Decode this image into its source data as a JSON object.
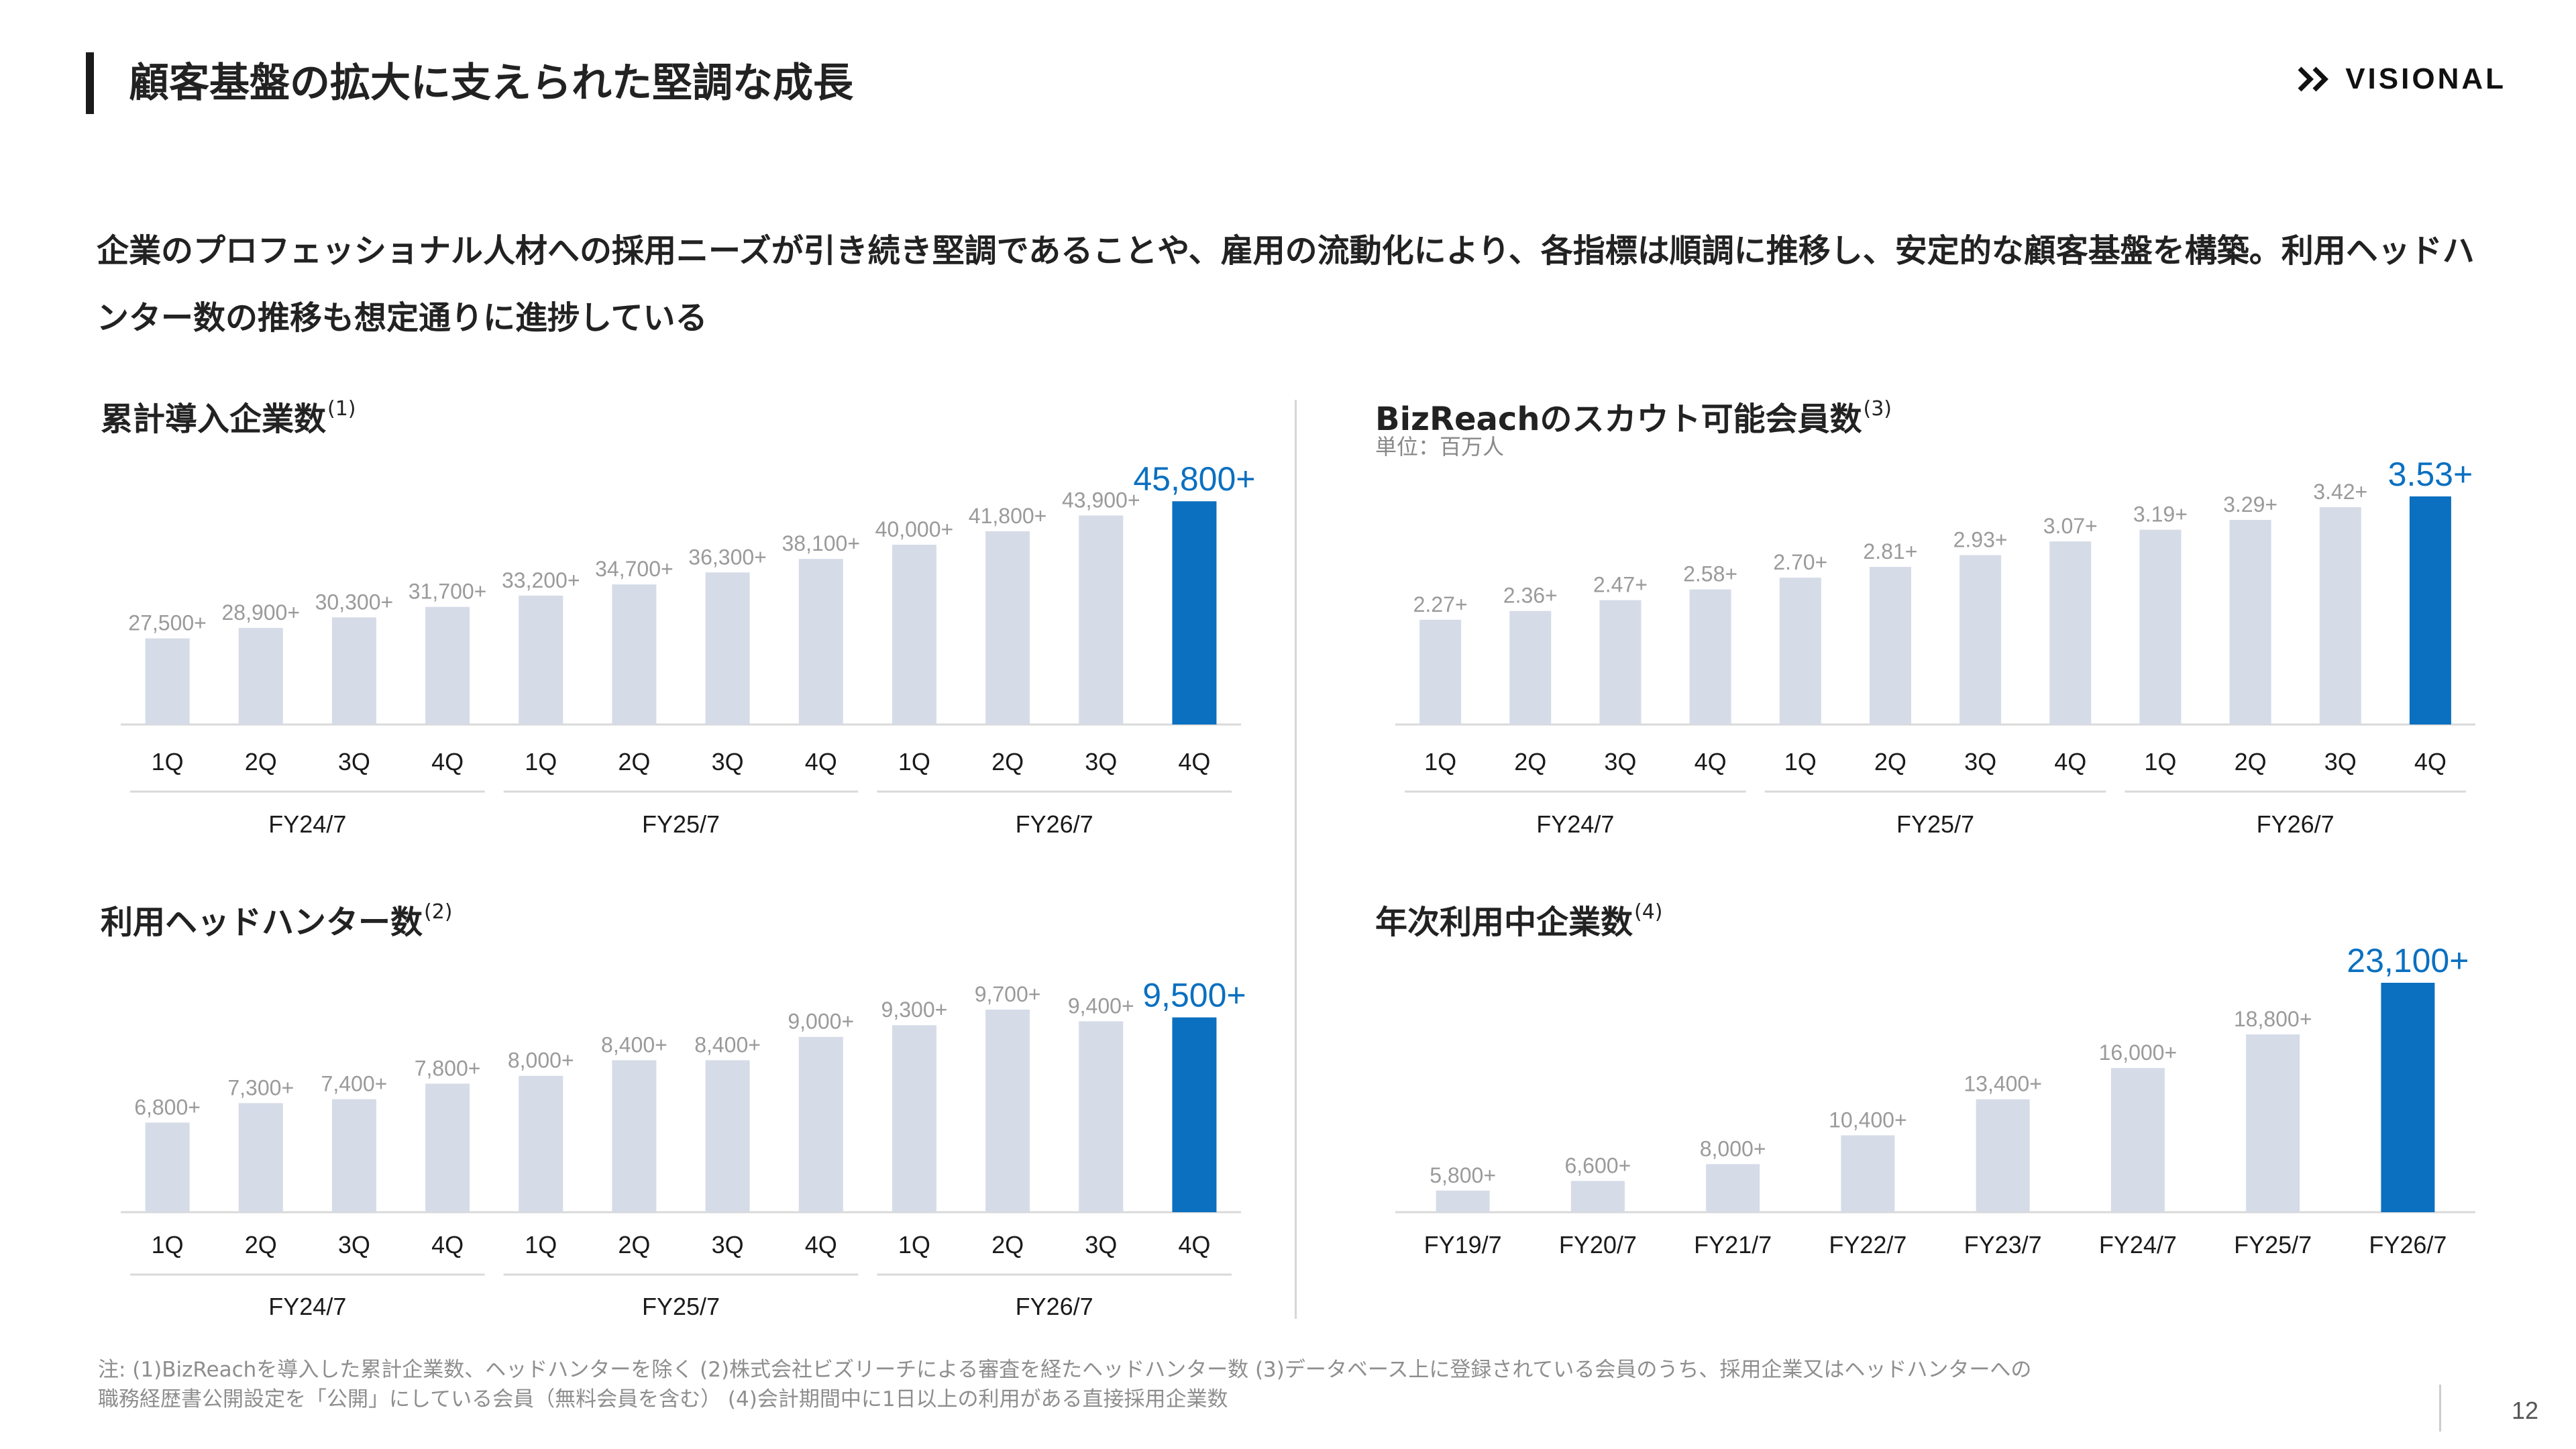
{
  "header": {
    "title": "顧客基盤の拡大に支えられた堅調な成長",
    "logo_text": "VISIONAL"
  },
  "lead": "企業のプロフェッショナル人材への採用ニーズが引き続き堅調であることや、雇用の流動化により、各指標は順調に推移し、安定的な顧客基盤を構築。利用ヘッドハンター数の推移も想定通りに進捗している",
  "colors": {
    "bar": "#d5dbe7",
    "highlight": "#0b70c0",
    "axis": "#d9d9d9"
  },
  "charts": {
    "companies": {
      "title": "累計導入企業数",
      "sup": "(1)"
    },
    "scouts": {
      "title": "BizReachのスカウト可能会員数",
      "sup": "(3)",
      "unit": "単位：百万人"
    },
    "hunters": {
      "title": "利用ヘッドハンター数",
      "sup": "(2)"
    },
    "annual": {
      "title": "年次利用中企業数",
      "sup": "(4)"
    }
  },
  "chart_data": [
    {
      "id": "companies",
      "type": "bar",
      "title": "累計導入企業数",
      "categories": [
        "1Q",
        "2Q",
        "3Q",
        "4Q",
        "1Q",
        "2Q",
        "3Q",
        "4Q",
        "1Q",
        "2Q",
        "3Q",
        "4Q"
      ],
      "groups": [
        {
          "name": "FY24/7",
          "start": 0,
          "end": 3
        },
        {
          "name": "FY25/7",
          "start": 4,
          "end": 7
        },
        {
          "name": "FY26/7",
          "start": 8,
          "end": 11
        }
      ],
      "values": [
        27500,
        28900,
        30300,
        31700,
        33200,
        34700,
        36300,
        38100,
        40000,
        41800,
        43900,
        45800
      ],
      "labels": [
        "27,500+",
        "28,900+",
        "30,300+",
        "31,700+",
        "33,200+",
        "34,700+",
        "36,300+",
        "38,100+",
        "40,000+",
        "41,800+",
        "43,900+",
        "45,800+"
      ],
      "highlight_index": 11,
      "ylim": [
        16000,
        46000
      ]
    },
    {
      "id": "scouts",
      "type": "bar",
      "title": "BizReachのスカウト可能会員数",
      "unit": "単位：百万人",
      "categories": [
        "1Q",
        "2Q",
        "3Q",
        "4Q",
        "1Q",
        "2Q",
        "3Q",
        "4Q",
        "1Q",
        "2Q",
        "3Q",
        "4Q"
      ],
      "groups": [
        {
          "name": "FY24/7",
          "start": 0,
          "end": 3
        },
        {
          "name": "FY25/7",
          "start": 4,
          "end": 7
        },
        {
          "name": "FY26/7",
          "start": 8,
          "end": 11
        }
      ],
      "values": [
        2.27,
        2.36,
        2.47,
        2.58,
        2.7,
        2.81,
        2.93,
        3.07,
        3.19,
        3.29,
        3.42,
        3.53
      ],
      "labels": [
        "2.27+",
        "2.36+",
        "2.47+",
        "2.58+",
        "2.70+",
        "2.81+",
        "2.93+",
        "3.07+",
        "3.19+",
        "3.29+",
        "3.42+",
        "3.53+"
      ],
      "highlight_index": 11,
      "ylim": [
        1.2,
        3.53
      ]
    },
    {
      "id": "hunters",
      "type": "bar",
      "title": "利用ヘッドハンター数",
      "categories": [
        "1Q",
        "2Q",
        "3Q",
        "4Q",
        "1Q",
        "2Q",
        "3Q",
        "4Q",
        "1Q",
        "2Q",
        "3Q",
        "4Q"
      ],
      "groups": [
        {
          "name": "FY24/7",
          "start": 0,
          "end": 3
        },
        {
          "name": "FY25/7",
          "start": 4,
          "end": 7
        },
        {
          "name": "FY26/7",
          "start": 8,
          "end": 11
        }
      ],
      "values": [
        6800,
        7300,
        7400,
        7800,
        8000,
        8400,
        8400,
        9000,
        9300,
        9700,
        9400,
        9500
      ],
      "labels": [
        "6,800+",
        "7,300+",
        "7,400+",
        "7,800+",
        "8,000+",
        "8,400+",
        "8,400+",
        "9,000+",
        "9,300+",
        "9,700+",
        "9,400+",
        "9,500+"
      ],
      "highlight_index": 11,
      "ylim": [
        4500,
        9700
      ]
    },
    {
      "id": "annual",
      "type": "bar",
      "title": "年次利用中企業数",
      "categories": [
        "FY19/7",
        "FY20/7",
        "FY21/7",
        "FY22/7",
        "FY23/7",
        "FY24/7",
        "FY25/7",
        "FY26/7"
      ],
      "groups": [],
      "values": [
        5800,
        6600,
        8000,
        10400,
        13400,
        16000,
        18800,
        23100
      ],
      "labels": [
        "5,800+",
        "6,600+",
        "8,000+",
        "10,400+",
        "13,400+",
        "16,000+",
        "18,800+",
        "23,100+"
      ],
      "highlight_index": 7,
      "ylim": [
        4000,
        23100
      ]
    }
  ],
  "footnote": {
    "line1": "注: (1)BizReachを導入した累計企業数、ヘッドハンターを除く (2)株式会社ビズリーチによる審査を経たヘッドハンター数 (3)データベース上に登録されている会員のうち、採用企業又はヘッドハンターへの",
    "line2": "職務経歴書公開設定を「公開」にしている会員（無料会員を含む） (4)会計期間中に1日以上の利用がある直接採用企業数"
  },
  "page_number": "12"
}
